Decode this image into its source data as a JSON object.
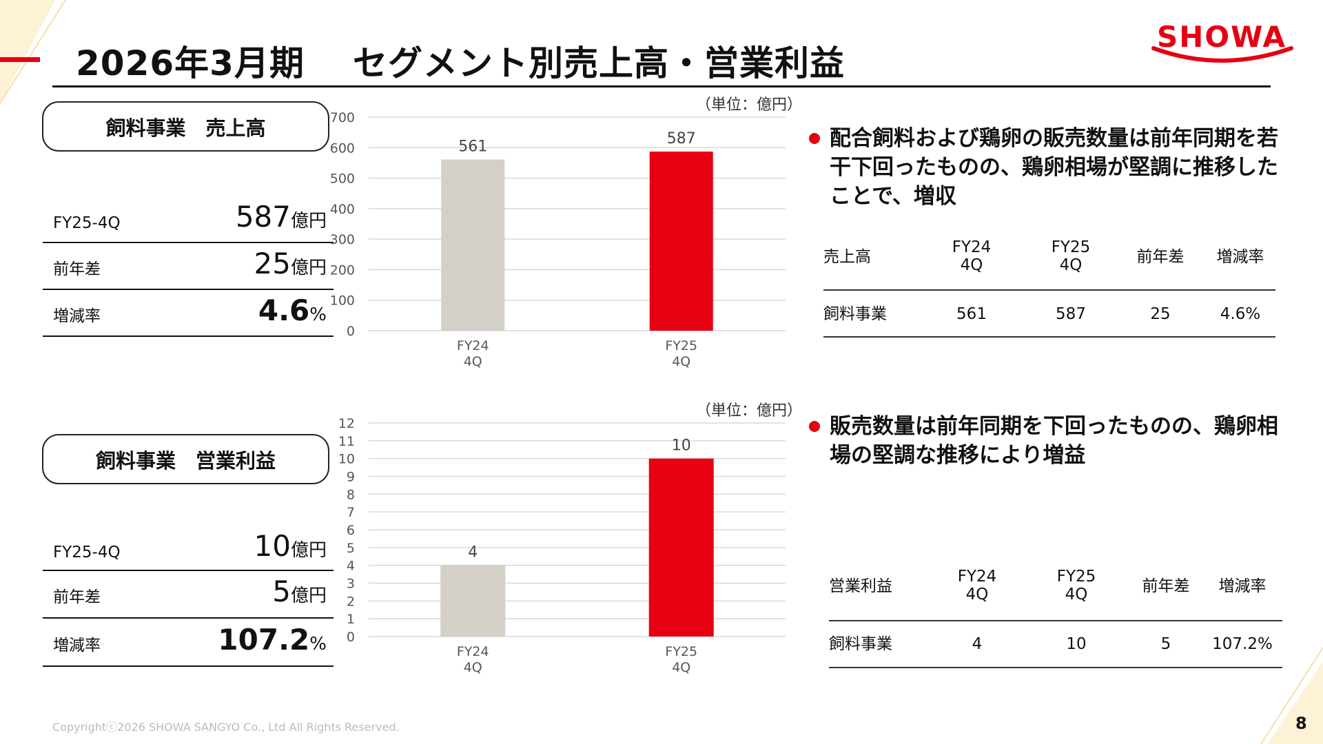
{
  "header": {
    "period": "2026年3月期",
    "title": "セグメント別売上高・営業利益",
    "logo_text": "SHOWA"
  },
  "sales": {
    "pill_label": "飼料事業　売上高",
    "rows": [
      {
        "label": "FY25-4Q",
        "value": "587",
        "unit": "億円"
      },
      {
        "label": "前年差",
        "value": "25",
        "unit": "億円"
      },
      {
        "label": "増減率",
        "value": "4.6",
        "unit": "%"
      }
    ],
    "unit_label": "（単位：億円）",
    "bullet": "配合飼料および鶏卵の販売数量は前年同期を若干下回ったものの、鶏卵相場が堅調に推移したことで、増収",
    "table": {
      "headers": [
        "売上高",
        "FY24\n4Q",
        "FY25\n4Q",
        "前年差",
        "増減率"
      ],
      "row": [
        "飼料事業",
        "561",
        "587",
        "25",
        "4.6%"
      ]
    }
  },
  "profit": {
    "pill_label": "飼料事業　営業利益",
    "rows": [
      {
        "label": "FY25-4Q",
        "value": "10",
        "unit": "億円"
      },
      {
        "label": "前年差",
        "value": "5",
        "unit": "億円"
      },
      {
        "label": "増減率",
        "value": "107.2",
        "unit": "%"
      }
    ],
    "unit_label": "（単位：億円）",
    "bullet": "販売数量は前年同期を下回ったものの、鶏卵相場の堅調な推移により増益",
    "table": {
      "headers": [
        "営業利益",
        "FY24\n4Q",
        "FY25\n4Q",
        "前年差",
        "増減率"
      ],
      "row": [
        "飼料事業",
        "4",
        "10",
        "5",
        "107.2%"
      ]
    }
  },
  "chart_data": [
    {
      "type": "bar",
      "categories": [
        "FY24\n4Q",
        "FY25\n4Q"
      ],
      "values": [
        561,
        587
      ],
      "data_labels": [
        "561",
        "587"
      ],
      "ylim": [
        0,
        700
      ],
      "yticks": [
        0,
        100,
        200,
        300,
        400,
        500,
        600,
        700
      ],
      "grid": true,
      "colors": [
        "#d4d0c8",
        "#e60012"
      ]
    },
    {
      "type": "bar",
      "categories": [
        "FY24\n4Q",
        "FY25\n4Q"
      ],
      "values": [
        4,
        10
      ],
      "data_labels": [
        "4",
        "10"
      ],
      "ylim": [
        0,
        12
      ],
      "yticks": [
        0,
        1,
        2,
        3,
        4,
        5,
        6,
        7,
        8,
        9,
        10,
        11,
        12
      ],
      "grid": true,
      "colors": [
        "#d4d0c8",
        "#e60012"
      ]
    }
  ],
  "footer": {
    "copyright": "Copyrightⓒ2026 SHOWA SANGYO Co., Ltd All Rights Reserved.",
    "page": "8"
  },
  "colors": {
    "accent": "#e60012",
    "bar_prev": "#d4d0c8",
    "deco_yellow": "#fdf3dc"
  }
}
